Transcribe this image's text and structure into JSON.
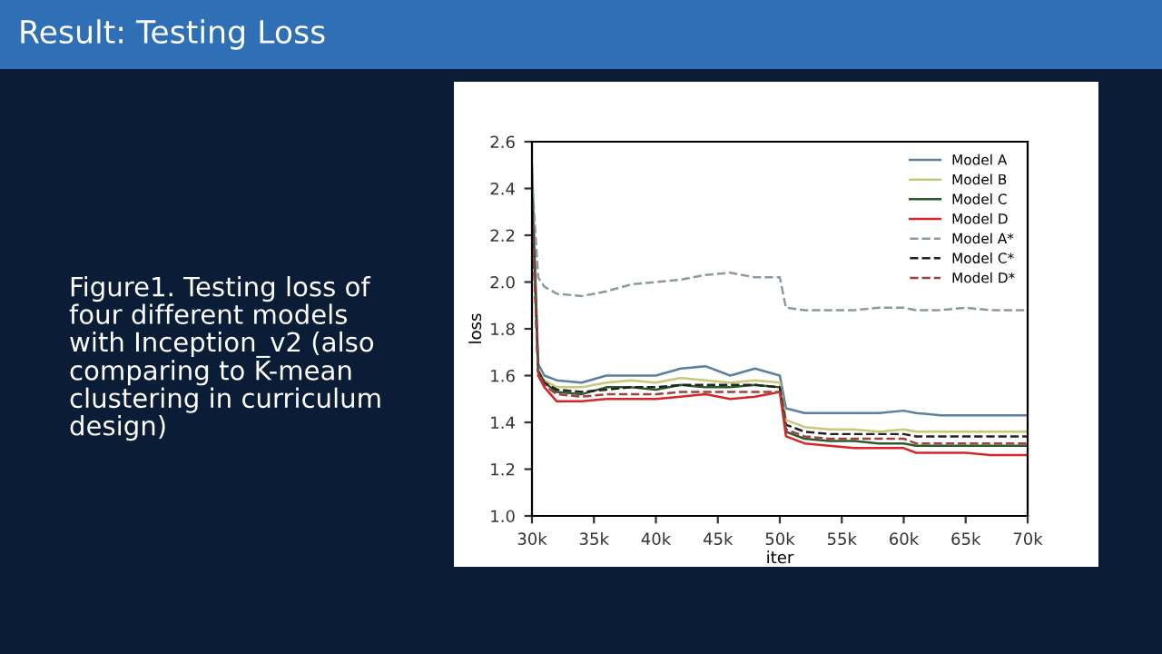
{
  "chart_data": {
    "type": "line",
    "title": "Result: Testing Loss",
    "annotations": [
      "Figure1. Testing loss of\nfour different models\nwith Inception_v2 (also\ncomparing to K-mean\nclustering in curriculum\ndesign)"
    ],
    "xlabel": "iter",
    "ylabel": "loss",
    "x": [
      30000,
      30500,
      31000,
      32000,
      34000,
      36000,
      38000,
      40000,
      42000,
      44000,
      46000,
      48000,
      50000,
      50500,
      52000,
      54000,
      56000,
      58000,
      60000,
      61000,
      63000,
      65000,
      67000,
      70000
    ],
    "series": [
      {
        "name": "Model A",
        "color": "#5a7fa0",
        "line_style": "solid",
        "values": [
          2.5,
          1.65,
          1.6,
          1.58,
          1.57,
          1.6,
          1.6,
          1.6,
          1.63,
          1.64,
          1.6,
          1.63,
          1.6,
          1.46,
          1.44,
          1.44,
          1.44,
          1.44,
          1.45,
          1.44,
          1.43,
          1.43,
          1.43,
          1.43
        ]
      },
      {
        "name": "Model B",
        "color": "#c8c87a",
        "line_style": "solid",
        "values": [
          2.4,
          1.62,
          1.58,
          1.55,
          1.55,
          1.57,
          1.58,
          1.57,
          1.59,
          1.58,
          1.57,
          1.58,
          1.57,
          1.41,
          1.38,
          1.37,
          1.37,
          1.36,
          1.37,
          1.36,
          1.36,
          1.36,
          1.36,
          1.36
        ]
      },
      {
        "name": "Model C",
        "color": "#2d5a2d",
        "line_style": "solid",
        "values": [
          2.4,
          1.62,
          1.57,
          1.53,
          1.52,
          1.55,
          1.55,
          1.54,
          1.56,
          1.55,
          1.55,
          1.56,
          1.55,
          1.36,
          1.33,
          1.32,
          1.32,
          1.31,
          1.31,
          1.3,
          1.3,
          1.3,
          1.3,
          1.3
        ]
      },
      {
        "name": "Model D",
        "color": "#d62728",
        "line_style": "solid",
        "values": [
          null,
          1.6,
          1.55,
          1.49,
          1.49,
          1.5,
          1.5,
          1.5,
          1.51,
          1.52,
          1.5,
          1.51,
          1.53,
          1.34,
          1.31,
          1.3,
          1.29,
          1.29,
          1.29,
          1.27,
          1.27,
          1.27,
          1.26,
          1.26
        ]
      },
      {
        "name": "Model A*",
        "color": "#8a9aa0",
        "line_style": "dashed",
        "values": [
          2.45,
          2.02,
          1.98,
          1.95,
          1.94,
          1.96,
          1.99,
          2.0,
          2.01,
          2.03,
          2.04,
          2.02,
          2.02,
          1.89,
          1.88,
          1.88,
          1.88,
          1.89,
          1.89,
          1.88,
          1.88,
          1.89,
          1.88,
          1.88
        ]
      },
      {
        "name": "Model C*",
        "color": "#222222",
        "line_style": "dashed",
        "values": [
          2.35,
          1.62,
          1.57,
          1.54,
          1.53,
          1.54,
          1.55,
          1.55,
          1.56,
          1.56,
          1.56,
          1.56,
          1.55,
          1.39,
          1.36,
          1.35,
          1.35,
          1.35,
          1.35,
          1.34,
          1.34,
          1.34,
          1.34,
          1.34
        ]
      },
      {
        "name": "Model D*",
        "color": "#a04040",
        "line_style": "dashed",
        "values": [
          2.3,
          1.61,
          1.56,
          1.52,
          1.51,
          1.52,
          1.52,
          1.52,
          1.53,
          1.53,
          1.53,
          1.53,
          1.53,
          1.37,
          1.34,
          1.33,
          1.33,
          1.33,
          1.33,
          1.31,
          1.31,
          1.31,
          1.31,
          1.31
        ]
      }
    ],
    "xlim": [
      30000,
      70000
    ],
    "xticks": [
      {
        "value": 30000,
        "label": "30k"
      },
      {
        "value": 35000,
        "label": "35k"
      },
      {
        "value": 40000,
        "label": "40k"
      },
      {
        "value": 45000,
        "label": "45k"
      },
      {
        "value": 50000,
        "label": "50k"
      },
      {
        "value": 55000,
        "label": "55k"
      },
      {
        "value": 60000,
        "label": "60k"
      },
      {
        "value": 65000,
        "label": "65k"
      },
      {
        "value": 70000,
        "label": "70k"
      }
    ],
    "ylim": [
      1.0,
      2.6
    ],
    "yticks": [
      {
        "value": 1.0,
        "label": "1.0"
      },
      1.2,
      1.4,
      1.6,
      1.8,
      {
        "value": 2.0,
        "label": "2.0"
      },
      2.2,
      2.4,
      2.6
    ],
    "grid": false,
    "legend": "top right"
  }
}
